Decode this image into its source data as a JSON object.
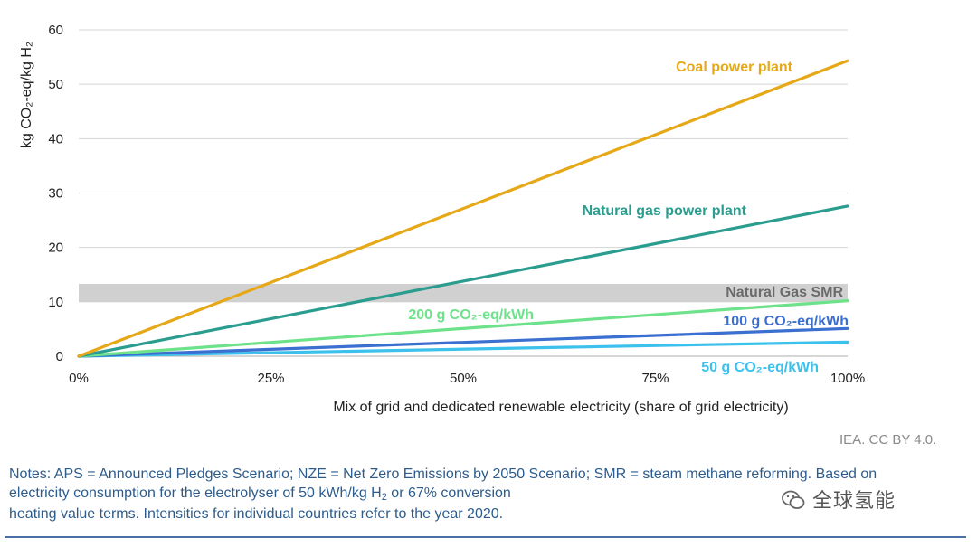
{
  "chart_data": {
    "type": "line",
    "title": "",
    "xlabel": "Mix of grid and dedicated renewable electricity (share of grid electricity)",
    "ylabel": "kg CO₂-eq/kg H₂",
    "xlim": [
      0,
      100
    ],
    "ylim": [
      0,
      60
    ],
    "x_ticks": [
      "0%",
      "25%",
      "50%",
      "75%",
      "100%"
    ],
    "y_ticks": [
      "0",
      "10",
      "20",
      "30",
      "40",
      "50",
      "60"
    ],
    "x": [
      0,
      100
    ],
    "band": {
      "name": "Natural Gas SMR",
      "y0": 10,
      "y1": 13.3,
      "color": "#d0d0d0",
      "label_color": "#6b6b6b"
    },
    "series": [
      {
        "name": "Coal power plant",
        "values": [
          0,
          54.3
        ],
        "color": "#e6a817"
      },
      {
        "name": "Natural gas power plant",
        "values": [
          0,
          27.6
        ],
        "color": "#2a9d8f"
      },
      {
        "name": "200 g CO₂-eq/kWh",
        "values": [
          0,
          10.2
        ],
        "color": "#6ee28a"
      },
      {
        "name": "100 g CO₂-eq/kWh",
        "values": [
          0,
          5.1
        ],
        "color": "#3b6fd0"
      },
      {
        "name": "50 g CO₂-eq/kWh",
        "values": [
          0,
          2.6
        ],
        "color": "#3cc0ec"
      }
    ]
  },
  "credit": "IEA. CC BY 4.0.",
  "notes": {
    "part1": "Notes: APS = Announced Pledges Scenario; NZE = Net Zero Emissions by 2050 Scenario; SMR = steam methane reforming. Based on electricity consumption for the electrolyser of 50 kWh/kg H",
    "sub": "2",
    "part2": " or 67% conversion",
    "line3": "heating value terms. Intensities for individual countries refer to the year 2020."
  },
  "watermark": "全球氢能"
}
